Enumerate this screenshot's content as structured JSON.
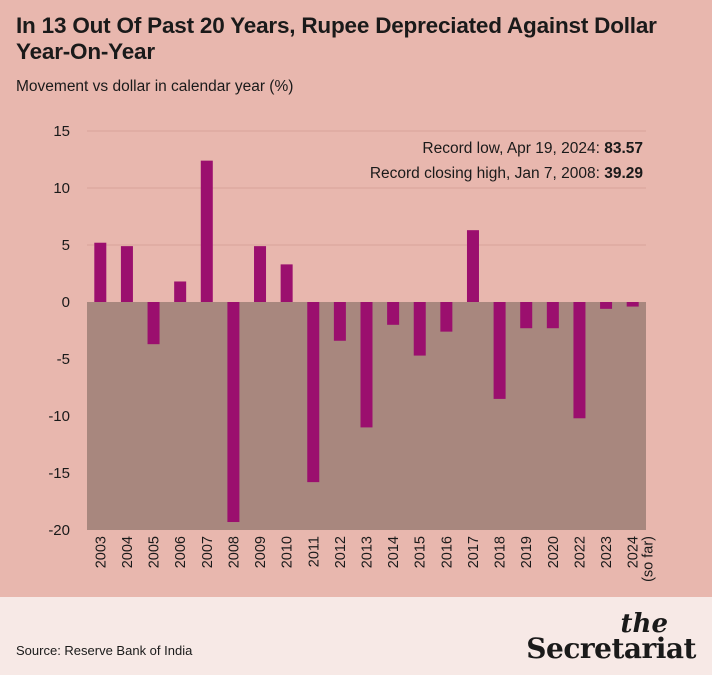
{
  "title": "In 13 Out Of Past 20 Years, Rupee Depreciated Against Dollar Year-On-Year",
  "subtitle": "Movement vs dollar in calendar year (%)",
  "source": "Source: Reserve Bank of India",
  "brand": {
    "the": "the",
    "name": "Secretariat"
  },
  "colors": {
    "bar": "#9b0f6e",
    "negative_area": "#a8877e",
    "background": "#e8b7ae",
    "gridline": "#d9a39b"
  },
  "annotations": [
    {
      "label": "Record low, Apr 19, 2024: ",
      "value": "83.57"
    },
    {
      "label": "Record closing high, Jan 7, 2008: ",
      "value": "39.29"
    }
  ],
  "chart_data": {
    "type": "bar",
    "categories": [
      "2003",
      "2004",
      "2005",
      "2006",
      "2007",
      "2008",
      "2009",
      "2010",
      "2011",
      "2012",
      "2013",
      "2014",
      "2015",
      "2016",
      "2017",
      "2018",
      "2019",
      "2020",
      "2022",
      "2023",
      "2024"
    ],
    "category_suffix": {
      "2024": "(so far)"
    },
    "values": [
      5.2,
      4.9,
      -3.7,
      1.8,
      12.4,
      -19.3,
      4.9,
      3.3,
      -15.8,
      -3.4,
      -11.0,
      -2.0,
      -4.7,
      -2.6,
      6.3,
      -8.5,
      -2.3,
      -2.3,
      -10.2,
      -0.6,
      -0.4
    ],
    "yticks": [
      15,
      10,
      5,
      0,
      -5,
      -10,
      -15,
      -20
    ],
    "ylim": [
      -20,
      15
    ],
    "grid": true
  }
}
